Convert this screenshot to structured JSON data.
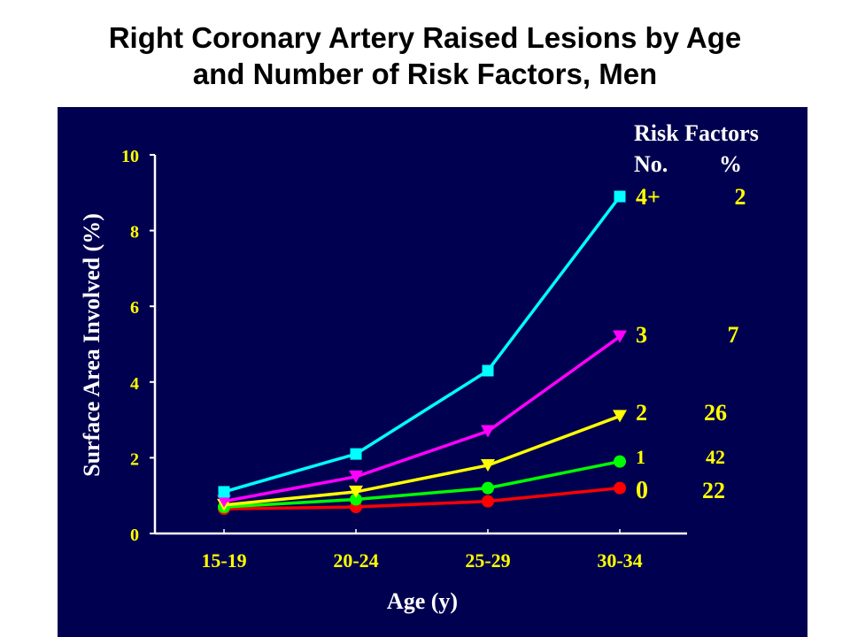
{
  "slide": {
    "title_line1": "Right Coronary Artery Raised Lesions by Age",
    "title_line2": "and Number of Risk Factors, Men"
  },
  "legend": {
    "heading": "Risk Factors",
    "col_no": "No.",
    "col_pct": "%"
  },
  "colors": {
    "panel_bg": "#000050",
    "axis": "#ffffff",
    "tick_label": "#ffff00",
    "axis_title": "#ffffff"
  },
  "chart_data": {
    "type": "line",
    "title": "Right Coronary Artery Raised Lesions by Age and Number of Risk Factors, Men",
    "xlabel": "Age (y)",
    "ylabel": "Surface Area Involved (%)",
    "categories": [
      "15-19",
      "20-24",
      "25-29",
      "30-34"
    ],
    "ylim": [
      0,
      10
    ],
    "yticks": [
      0,
      2,
      4,
      6,
      8,
      10
    ],
    "grid": false,
    "legend_placement": "right (inline labels at line ends)",
    "series": [
      {
        "name": "4+",
        "pct": "2",
        "color": "#00ffff",
        "marker": "square",
        "values": [
          1.1,
          2.1,
          4.3,
          8.9
        ]
      },
      {
        "name": "3",
        "pct": "7",
        "color": "#ff00ff",
        "marker": "triangle-down",
        "values": [
          0.85,
          1.5,
          2.7,
          5.2
        ]
      },
      {
        "name": "2",
        "pct": "26",
        "color": "#ffff00",
        "marker": "triangle-down",
        "values": [
          0.75,
          1.1,
          1.8,
          3.1
        ]
      },
      {
        "name": "1",
        "pct": "42",
        "color": "#00ff00",
        "marker": "circle",
        "values": [
          0.7,
          0.9,
          1.2,
          1.9
        ]
      },
      {
        "name": "0",
        "pct": "22",
        "color": "#ff0000",
        "marker": "circle",
        "values": [
          0.65,
          0.7,
          0.85,
          1.2
        ]
      }
    ]
  }
}
